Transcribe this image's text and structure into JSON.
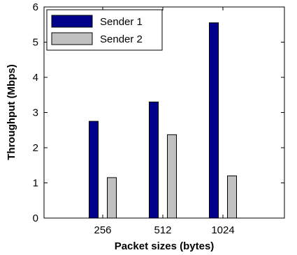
{
  "chart_data": {
    "type": "bar",
    "title": "",
    "xlabel": "Packet sizes (bytes)",
    "ylabel": "Throughput (Mbps)",
    "categories": [
      "256",
      "512",
      "1024"
    ],
    "ylim": [
      0,
      6
    ],
    "yticks": [
      "0",
      "1",
      "2",
      "3",
      "4",
      "5",
      "6"
    ],
    "grid": false,
    "legend_position": "top-left",
    "series": [
      {
        "name": "Sender 1",
        "color": "#00008b",
        "values": [
          2.75,
          3.3,
          5.55
        ]
      },
      {
        "name": "Sender 2",
        "color": "#c0c0c0",
        "values": [
          1.15,
          2.37,
          1.2
        ]
      }
    ]
  }
}
